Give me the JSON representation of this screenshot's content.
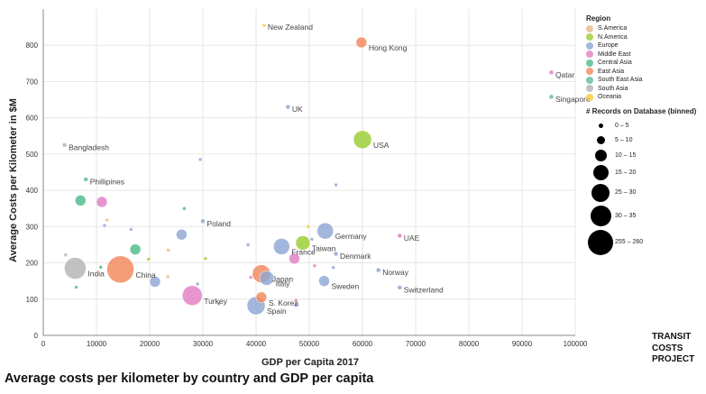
{
  "chart_data": {
    "type": "scatter",
    "xlabel": "GDP per Capita 2017",
    "ylabel": "Average Costs per Kilometer in $M",
    "xlim": [
      0,
      100000
    ],
    "ylim": [
      0,
      900
    ],
    "x_ticks": [
      0,
      10000,
      20000,
      30000,
      40000,
      50000,
      60000,
      70000,
      80000,
      90000,
      100000
    ],
    "y_ticks": [
      0,
      100,
      200,
      300,
      400,
      500,
      600,
      700,
      800
    ],
    "grid": true,
    "legend_placement": "right",
    "points": [
      {
        "label": "New Zealand",
        "x": 41500,
        "y": 855,
        "region": "Oceania",
        "r": 2
      },
      {
        "label": "Hong Kong",
        "x": 59800,
        "y": 808,
        "region": "East Asia",
        "r": 6
      },
      {
        "label": "Qatar",
        "x": 95500,
        "y": 725,
        "region": "Middle East",
        "r": 2.5
      },
      {
        "label": "Singapore",
        "x": 95500,
        "y": 658,
        "region": "South East Asia",
        "r": 2.5
      },
      {
        "label": "UK",
        "x": 46000,
        "y": 630,
        "region": "Europe",
        "r": 2.5
      },
      {
        "label": "USA",
        "x": 60000,
        "y": 540,
        "region": "N.America",
        "r": 10
      },
      {
        "label": "Bangladesh",
        "x": 4000,
        "y": 525,
        "region": "South Asia",
        "r": 2.5
      },
      {
        "label": "Phillipines",
        "x": 8000,
        "y": 430,
        "region": "South East Asia",
        "r": 2.5
      },
      {
        "label": "Germany",
        "x": 53000,
        "y": 288,
        "region": "Europe",
        "r": 9
      },
      {
        "label": "Poland",
        "x": 30000,
        "y": 315,
        "region": "Europe",
        "r": 2.5
      },
      {
        "label": "UAE",
        "x": 67000,
        "y": 275,
        "region": "Middle East",
        "r": 2.5
      },
      {
        "label": "France",
        "x": 44800,
        "y": 245,
        "region": "Europe",
        "r": 9
      },
      {
        "label": "Taiwan",
        "x": 48800,
        "y": 255,
        "region": "N.America",
        "r": 8
      },
      {
        "label": "Denmark",
        "x": 55000,
        "y": 225,
        "region": "Europe",
        "r": 2.5
      },
      {
        "label": "India",
        "x": 6000,
        "y": 185,
        "region": "South Asia",
        "r": 12
      },
      {
        "label": "China",
        "x": 14500,
        "y": 182,
        "region": "East Asia",
        "r": 15
      },
      {
        "label": "Japan",
        "x": 41000,
        "y": 170,
        "region": "East Asia",
        "r": 10
      },
      {
        "label": "Italy",
        "x": 42000,
        "y": 158,
        "region": "Europe",
        "r": 8
      },
      {
        "label": "Norway",
        "x": 63000,
        "y": 180,
        "region": "Europe",
        "r": 2.5
      },
      {
        "label": "Sweden",
        "x": 52800,
        "y": 150,
        "region": "Europe",
        "r": 6
      },
      {
        "label": "Switzerland",
        "x": 67000,
        "y": 132,
        "region": "Europe",
        "r": 2.5
      },
      {
        "label": "Turkey",
        "x": 28000,
        "y": 110,
        "region": "Middle East",
        "r": 11
      },
      {
        "label": "S. Korea",
        "x": 41000,
        "y": 105,
        "region": "East Asia",
        "r": 6
      },
      {
        "label": "Spain",
        "x": 40000,
        "y": 82,
        "region": "Europe",
        "r": 10
      },
      {
        "label": "",
        "x": 7000,
        "y": 372,
        "region": "Central Asia",
        "r": 6
      },
      {
        "label": "",
        "x": 11000,
        "y": 368,
        "region": "Middle East",
        "r": 6
      },
      {
        "label": "",
        "x": 26000,
        "y": 278,
        "region": "Europe",
        "r": 6
      },
      {
        "label": "",
        "x": 17300,
        "y": 237,
        "region": "Central Asia",
        "r": 6
      },
      {
        "label": "",
        "x": 21000,
        "y": 148,
        "region": "Europe",
        "r": 6
      },
      {
        "label": "",
        "x": 47200,
        "y": 212,
        "region": "Middle East",
        "r": 6
      },
      {
        "label": "",
        "x": 29500,
        "y": 485,
        "region": "Europe",
        "r": 2
      },
      {
        "label": "",
        "x": 55000,
        "y": 415,
        "region": "Europe",
        "r": 2
      },
      {
        "label": "",
        "x": 26500,
        "y": 350,
        "region": "Central Asia",
        "r": 2
      },
      {
        "label": "",
        "x": 12000,
        "y": 318,
        "region": "S.America",
        "r": 2
      },
      {
        "label": "",
        "x": 11500,
        "y": 303,
        "region": "Europe",
        "r": 2
      },
      {
        "label": "",
        "x": 16500,
        "y": 292,
        "region": "Europe",
        "r": 2
      },
      {
        "label": "",
        "x": 49800,
        "y": 300,
        "region": "Oceania",
        "r": 2
      },
      {
        "label": "",
        "x": 38500,
        "y": 250,
        "region": "Europe",
        "r": 2
      },
      {
        "label": "",
        "x": 50500,
        "y": 265,
        "region": "Europe",
        "r": 2
      },
      {
        "label": "",
        "x": 23500,
        "y": 235,
        "region": "S.America",
        "r": 2
      },
      {
        "label": "",
        "x": 4200,
        "y": 222,
        "region": "South Asia",
        "r": 2
      },
      {
        "label": "",
        "x": 19800,
        "y": 210,
        "region": "N.America",
        "r": 2
      },
      {
        "label": "",
        "x": 30500,
        "y": 212,
        "region": "N.America",
        "r": 2
      },
      {
        "label": "",
        "x": 10800,
        "y": 188,
        "region": "Central Asia",
        "r": 2
      },
      {
        "label": "",
        "x": 51000,
        "y": 192,
        "region": "Middle East",
        "r": 2
      },
      {
        "label": "",
        "x": 54500,
        "y": 187,
        "region": "Europe",
        "r": 2
      },
      {
        "label": "",
        "x": 23400,
        "y": 162,
        "region": "S.America",
        "r": 2
      },
      {
        "label": "",
        "x": 39000,
        "y": 160,
        "region": "Middle East",
        "r": 2
      },
      {
        "label": "",
        "x": 29000,
        "y": 142,
        "region": "Europe",
        "r": 2
      },
      {
        "label": "",
        "x": 6200,
        "y": 133,
        "region": "Central Asia",
        "r": 2
      },
      {
        "label": "",
        "x": 47500,
        "y": 97,
        "region": "Middle East",
        "r": 2
      },
      {
        "label": "",
        "x": 33000,
        "y": 87,
        "region": "Europe",
        "r": 2
      },
      {
        "label": "",
        "x": 47500,
        "y": 82,
        "region": "Europe",
        "r": 2
      }
    ]
  },
  "legend": {
    "region_title": "Region",
    "regions": [
      {
        "name": "S.America",
        "color": "#e7b98a"
      },
      {
        "name": "N.America",
        "color": "#9acd32"
      },
      {
        "name": "Europe",
        "color": "#8fa6d4"
      },
      {
        "name": "Middle East",
        "color": "#e27ec4"
      },
      {
        "name": "Central Asia",
        "color": "#4cbb8a"
      },
      {
        "name": "East Asia",
        "color": "#f2895c"
      },
      {
        "name": "South East Asia",
        "color": "#5fb8a0"
      },
      {
        "name": "South Asia",
        "color": "#b3b3b3"
      },
      {
        "name": "Oceania",
        "color": "#f2cc3c"
      }
    ],
    "size_title": "# Records on Database (binned)",
    "sizes": [
      {
        "label": "0 – 5",
        "r": 2.5
      },
      {
        "label": "5 – 10",
        "r": 4.5
      },
      {
        "label": "10 – 15",
        "r": 6.5
      },
      {
        "label": "15 – 20",
        "r": 8.5
      },
      {
        "label": "25 – 30",
        "r": 10
      },
      {
        "label": "30 – 35",
        "r": 11.5
      },
      {
        "label": "255 – 260",
        "r": 14
      }
    ]
  },
  "caption": "Average costs per kilometer by country and GDP per capita",
  "brand": [
    "TRANSIT",
    "COSTS",
    "PROJECT"
  ]
}
